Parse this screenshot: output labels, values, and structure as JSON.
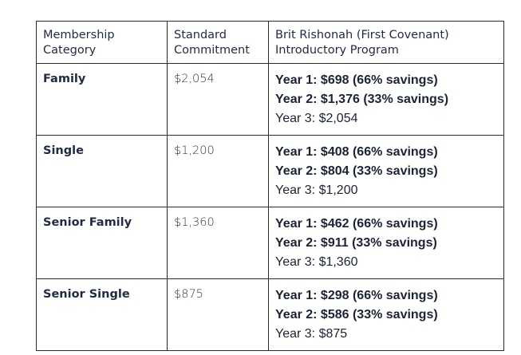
{
  "table": {
    "headers": [
      [
        "Membership",
        "Category"
      ],
      [
        "Standard",
        "Commitment"
      ],
      [
        "Brit Rishonah (First Covenant)",
        "Introductory Program"
      ]
    ],
    "rows": [
      {
        "category": "Family",
        "standard": "$2,054",
        "year1": "Year 1: $698   (66% savings)",
        "year2": "Year 2: $1,376  (33% savings)",
        "year3": "Year 3: $2,054"
      },
      {
        "category": "Single",
        "standard": "$1,200",
        "year1": "Year 1: $408  (66% savings)",
        "year2": "Year 2: $804  (33% savings)",
        "year3": "Year 3: $1,200"
      },
      {
        "category": "Senior Family",
        "standard": "$1,360",
        "year1": "Year 1: $462  (66% savings)",
        "year2": "Year 2: $911  (33% savings)",
        "year3": "Year 3: $1,360"
      },
      {
        "category": "Senior Single",
        "standard": "$875",
        "year1": "Year 1: $298  (66% savings)",
        "year2": "Year 2: $586  (33% savings)",
        "year3": "Year 3: $875"
      }
    ]
  }
}
